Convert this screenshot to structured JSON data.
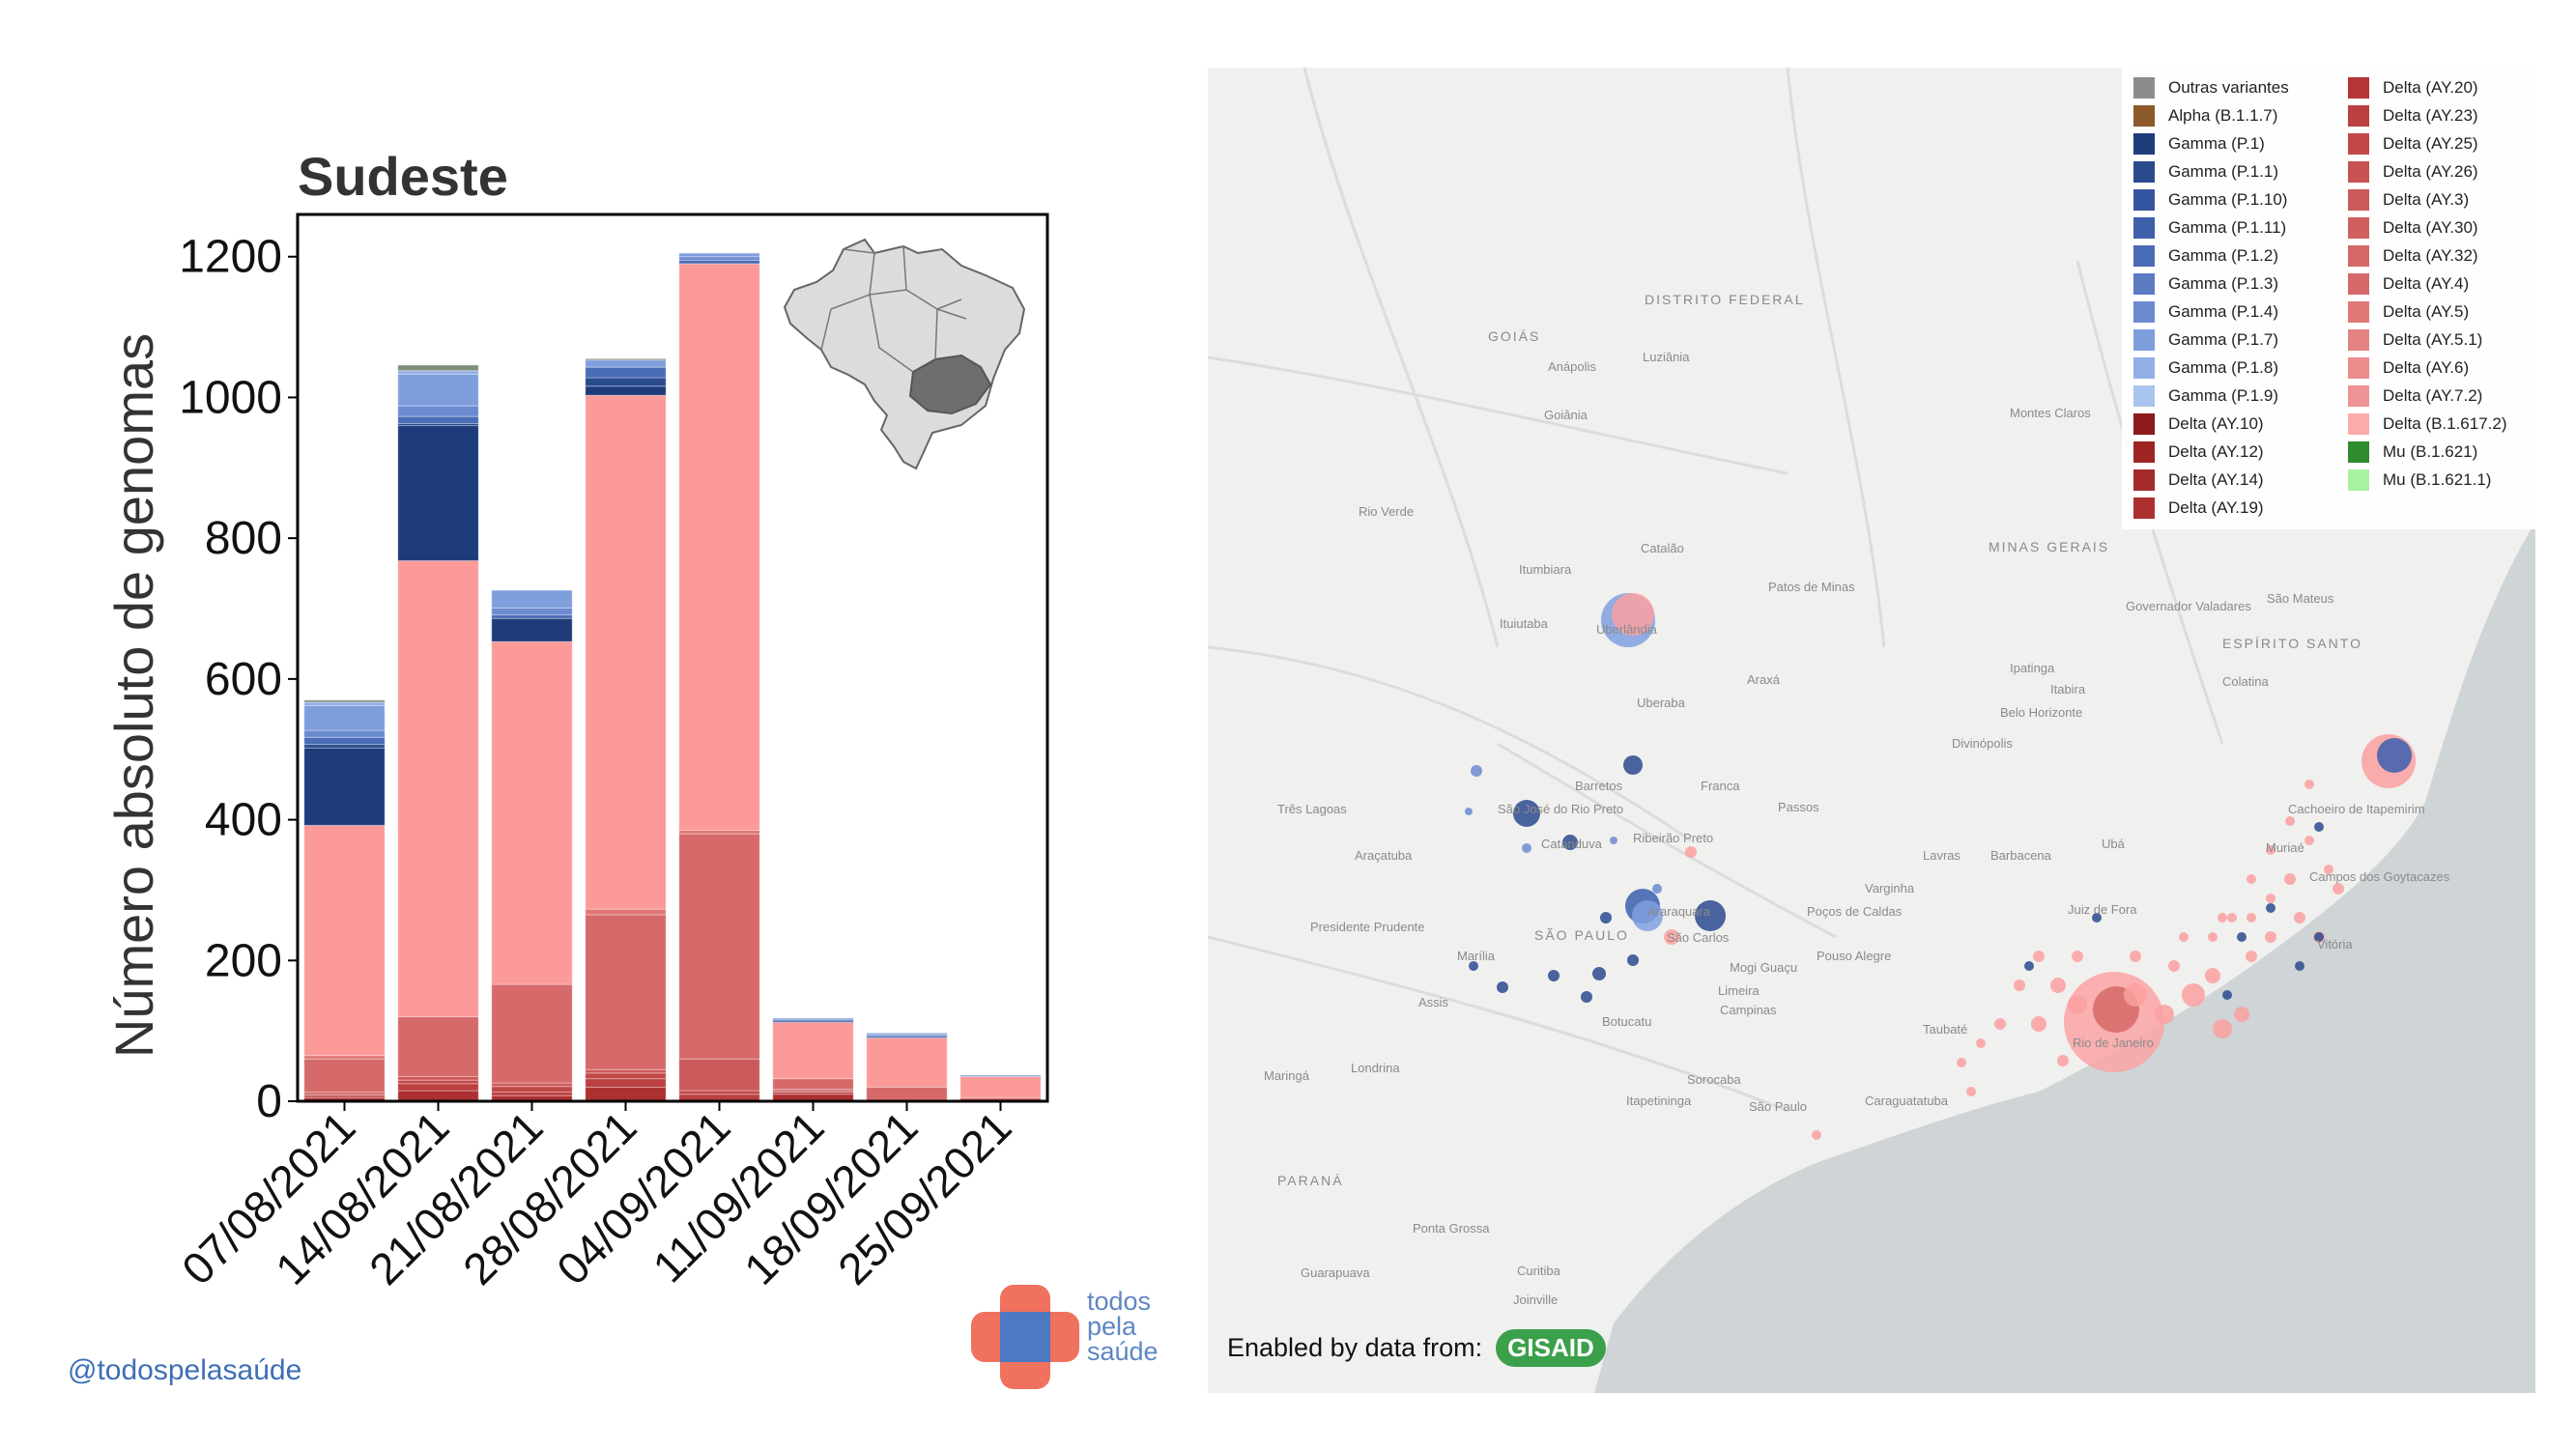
{
  "chart_data": {
    "type": "bar",
    "stacked": true,
    "title": "Sudeste",
    "ylabel": "Número absoluto de genomas",
    "xlabel": "",
    "ylim": [
      0,
      1260
    ],
    "yticks": [
      0,
      200,
      400,
      600,
      800,
      1000,
      1200
    ],
    "categories": [
      "07/08/2021",
      "14/08/2021",
      "21/08/2021",
      "28/08/2021",
      "04/09/2021",
      "11/09/2021",
      "18/09/2021",
      "25/09/2021"
    ],
    "series": [
      {
        "name": "Delta (AY.10)",
        "color": "#8b1a1a",
        "values": [
          0,
          0,
          0,
          0,
          0,
          0,
          0,
          0
        ]
      },
      {
        "name": "Delta (AY.12)",
        "color": "#9e2424",
        "values": [
          0,
          0,
          0,
          0,
          0,
          0,
          0,
          0
        ]
      },
      {
        "name": "Delta (AY.14)",
        "color": "#a52a2a",
        "values": [
          0,
          0,
          0,
          0,
          0,
          0,
          0,
          0
        ]
      },
      {
        "name": "Delta (AY.19)",
        "color": "#ad3030",
        "values": [
          5,
          15,
          8,
          20,
          0,
          10,
          0,
          0
        ]
      },
      {
        "name": "Delta (AY.20)",
        "color": "#b33535",
        "values": [
          0,
          0,
          0,
          0,
          0,
          0,
          0,
          0
        ]
      },
      {
        "name": "Delta (AY.23)",
        "color": "#bb4040",
        "values": [
          3,
          10,
          5,
          12,
          10,
          3,
          0,
          0
        ]
      },
      {
        "name": "Delta (AY.25)",
        "color": "#c24848",
        "values": [
          2,
          5,
          8,
          8,
          5,
          2,
          0,
          0
        ]
      },
      {
        "name": "Delta (AY.26)",
        "color": "#c85252",
        "values": [
          0,
          0,
          0,
          0,
          0,
          0,
          0,
          0
        ]
      },
      {
        "name": "Delta (AY.3)",
        "color": "#cc5a5a",
        "values": [
          3,
          5,
          5,
          5,
          45,
          2,
          0,
          0
        ]
      },
      {
        "name": "Delta (AY.30)",
        "color": "#d06060",
        "values": [
          0,
          0,
          0,
          0,
          0,
          0,
          0,
          0
        ]
      },
      {
        "name": "Delta (AY.32)",
        "color": "#d46868",
        "values": [
          0,
          0,
          0,
          0,
          0,
          0,
          0,
          0
        ]
      },
      {
        "name": "Delta (AY.4)",
        "color": "#d66a6a",
        "values": [
          47,
          85,
          140,
          220,
          320,
          15,
          20,
          5
        ]
      },
      {
        "name": "Delta (AY.5)",
        "color": "#e07878",
        "values": [
          5,
          0,
          0,
          8,
          5,
          0,
          0,
          0
        ]
      },
      {
        "name": "Delta (AY.5.1)",
        "color": "#e58282",
        "values": [
          0,
          0,
          0,
          0,
          0,
          0,
          0,
          0
        ]
      },
      {
        "name": "Delta (AY.6)",
        "color": "#ea8c8c",
        "values": [
          0,
          0,
          0,
          0,
          0,
          0,
          0,
          0
        ]
      },
      {
        "name": "Delta (AY.7.2)",
        "color": "#ef9494",
        "values": [
          0,
          0,
          0,
          0,
          0,
          0,
          0,
          0
        ]
      },
      {
        "name": "Delta (B.1.617.2)",
        "color": "#fc9a9a",
        "values": [
          327,
          648,
          487,
          730,
          805,
          80,
          70,
          30
        ]
      },
      {
        "name": "Gamma (P.1)",
        "color": "#1f3c7a",
        "values": [
          110,
          192,
          33,
          13,
          0,
          0,
          0,
          0
        ]
      },
      {
        "name": "Gamma (P.1.1)",
        "color": "#2a4a8e",
        "values": [
          5,
          3,
          0,
          12,
          0,
          2,
          0,
          0
        ]
      },
      {
        "name": "Gamma (P.1.10)",
        "color": "#3455a0",
        "values": [
          0,
          0,
          0,
          0,
          0,
          0,
          0,
          0
        ]
      },
      {
        "name": "Gamma (P.1.11)",
        "color": "#3e60ab",
        "values": [
          0,
          0,
          0,
          0,
          0,
          0,
          0,
          0
        ]
      },
      {
        "name": "Gamma (P.1.2)",
        "color": "#4a6cb6",
        "values": [
          10,
          10,
          5,
          15,
          5,
          2,
          3,
          0
        ]
      },
      {
        "name": "Gamma (P.1.3)",
        "color": "#5a7bc2",
        "values": [
          0,
          0,
          0,
          0,
          0,
          0,
          0,
          0
        ]
      },
      {
        "name": "Gamma (P.1.4)",
        "color": "#6b8bd0",
        "values": [
          10,
          15,
          10,
          0,
          5,
          0,
          2,
          0
        ]
      },
      {
        "name": "Gamma (P.1.7)",
        "color": "#7f9edc",
        "values": [
          35,
          45,
          25,
          10,
          5,
          2,
          2,
          2
        ]
      },
      {
        "name": "Gamma (P.1.8)",
        "color": "#93b0e6",
        "values": [
          5,
          5,
          0,
          0,
          0,
          0,
          0,
          0
        ]
      },
      {
        "name": "Gamma (P.1.9)",
        "color": "#a9c4ee",
        "values": [
          0,
          0,
          0,
          0,
          0,
          0,
          0,
          0
        ]
      },
      {
        "name": "Alpha (B.1.1.7)",
        "color": "#8b5a2b",
        "values": [
          0,
          0,
          0,
          0,
          0,
          0,
          0,
          0
        ]
      },
      {
        "name": "Outras variantes",
        "color": "#7f8f7a",
        "values": [
          3,
          8,
          0,
          2,
          0,
          0,
          0,
          0
        ]
      }
    ],
    "inset_map": "brazil-sudeste-highlight",
    "grid": false
  },
  "legend": {
    "col1": [
      {
        "label": "Outras variantes",
        "color": "#8c8c8c"
      },
      {
        "label": "Alpha (B.1.1.7)",
        "color": "#8b5a2b"
      },
      {
        "label": "Gamma (P.1)",
        "color": "#1f3c7a"
      },
      {
        "label": "Gamma (P.1.1)",
        "color": "#2a4a8e"
      },
      {
        "label": "Gamma (P.1.10)",
        "color": "#3455a0"
      },
      {
        "label": "Gamma (P.1.11)",
        "color": "#3e60ab"
      },
      {
        "label": "Gamma (P.1.2)",
        "color": "#4a6cb6"
      },
      {
        "label": "Gamma (P.1.3)",
        "color": "#5a7bc2"
      },
      {
        "label": "Gamma (P.1.4)",
        "color": "#6b8bd0"
      },
      {
        "label": "Gamma (P.1.7)",
        "color": "#7f9edc"
      },
      {
        "label": "Gamma (P.1.8)",
        "color": "#93b0e6"
      },
      {
        "label": "Gamma (P.1.9)",
        "color": "#a9c4ee"
      },
      {
        "label": "Delta (AY.10)",
        "color": "#8b1a1a"
      },
      {
        "label": "Delta (AY.12)",
        "color": "#9e2424"
      },
      {
        "label": "Delta (AY.14)",
        "color": "#a52a2a"
      },
      {
        "label": "Delta (AY.19)",
        "color": "#ad3030"
      }
    ],
    "col2": [
      {
        "label": "Delta (AY.20)",
        "color": "#b33535"
      },
      {
        "label": "Delta (AY.23)",
        "color": "#bb4040"
      },
      {
        "label": "Delta (AY.25)",
        "color": "#c24848"
      },
      {
        "label": "Delta (AY.26)",
        "color": "#c85252"
      },
      {
        "label": "Delta (AY.3)",
        "color": "#cc5a5a"
      },
      {
        "label": "Delta (AY.30)",
        "color": "#d06060"
      },
      {
        "label": "Delta (AY.32)",
        "color": "#d46868"
      },
      {
        "label": "Delta (AY.4)",
        "color": "#d66a6a"
      },
      {
        "label": "Delta (AY.5)",
        "color": "#e07878"
      },
      {
        "label": "Delta (AY.5.1)",
        "color": "#e58282"
      },
      {
        "label": "Delta (AY.6)",
        "color": "#ea8c8c"
      },
      {
        "label": "Delta (AY.7.2)",
        "color": "#ef9494"
      },
      {
        "label": "Delta (B.1.617.2)",
        "color": "#fcaaaa"
      },
      {
        "label": "Mu (B.1.621)",
        "color": "#2e8b2e"
      },
      {
        "label": "Mu (B.1.621.1)",
        "color": "#a6f2a0"
      }
    ]
  },
  "map": {
    "labels": [
      "GOIÁS",
      "DISTRITO FEDERAL",
      "Luziânia",
      "Anápolis",
      "Goiânia",
      "Rio Verde",
      "Montes Claros",
      "Catalão",
      "Itumbiara",
      "Patos de Minas",
      "MINAS GERAIS",
      "Ituiutaba",
      "Uberlândia",
      "Araxá",
      "Uberaba",
      "Governador Valadares",
      "Ipatinga",
      "Itabira",
      "ESPÍRITO SANTO",
      "São Mateus",
      "Colatina",
      "Belo Horizonte",
      "Divinópolis",
      "Barretos",
      "Franca",
      "Três Lagoas",
      "São José do Rio Preto",
      "Catanduva",
      "Ribeirão Preto",
      "Passos",
      "Araçatuba",
      "Lavras",
      "Barbacena",
      "Ubá",
      "Cachoeiro de Itapemirim",
      "Varginha",
      "Juiz de Fora",
      "Campos dos Goytacazes",
      "Presidente Prudente",
      "SÃO PAULO",
      "Araraquara",
      "São Carlos",
      "Poços de Caldas",
      "Marília",
      "Mogi Guaçu",
      "Pouso Alegre",
      "Limeira",
      "Assis",
      "Campinas",
      "Taubaté",
      "Rio de Janeiro",
      "Botucatu",
      "Maringá",
      "Londrina",
      "Sorocaba",
      "Itapetininga",
      "São Paulo",
      "Caraguatatuba",
      "PARANÁ",
      "Ponta Grossa",
      "Guarapuava",
      "Curitiba",
      "Joinville",
      "Muriaé",
      "Vitória"
    ],
    "credit": "Enabled by data from:",
    "credit_badge": "GISAID"
  },
  "footer": {
    "handle": "@todospelasaúde",
    "logo_text": [
      "todos",
      "pela",
      "saúde"
    ]
  }
}
